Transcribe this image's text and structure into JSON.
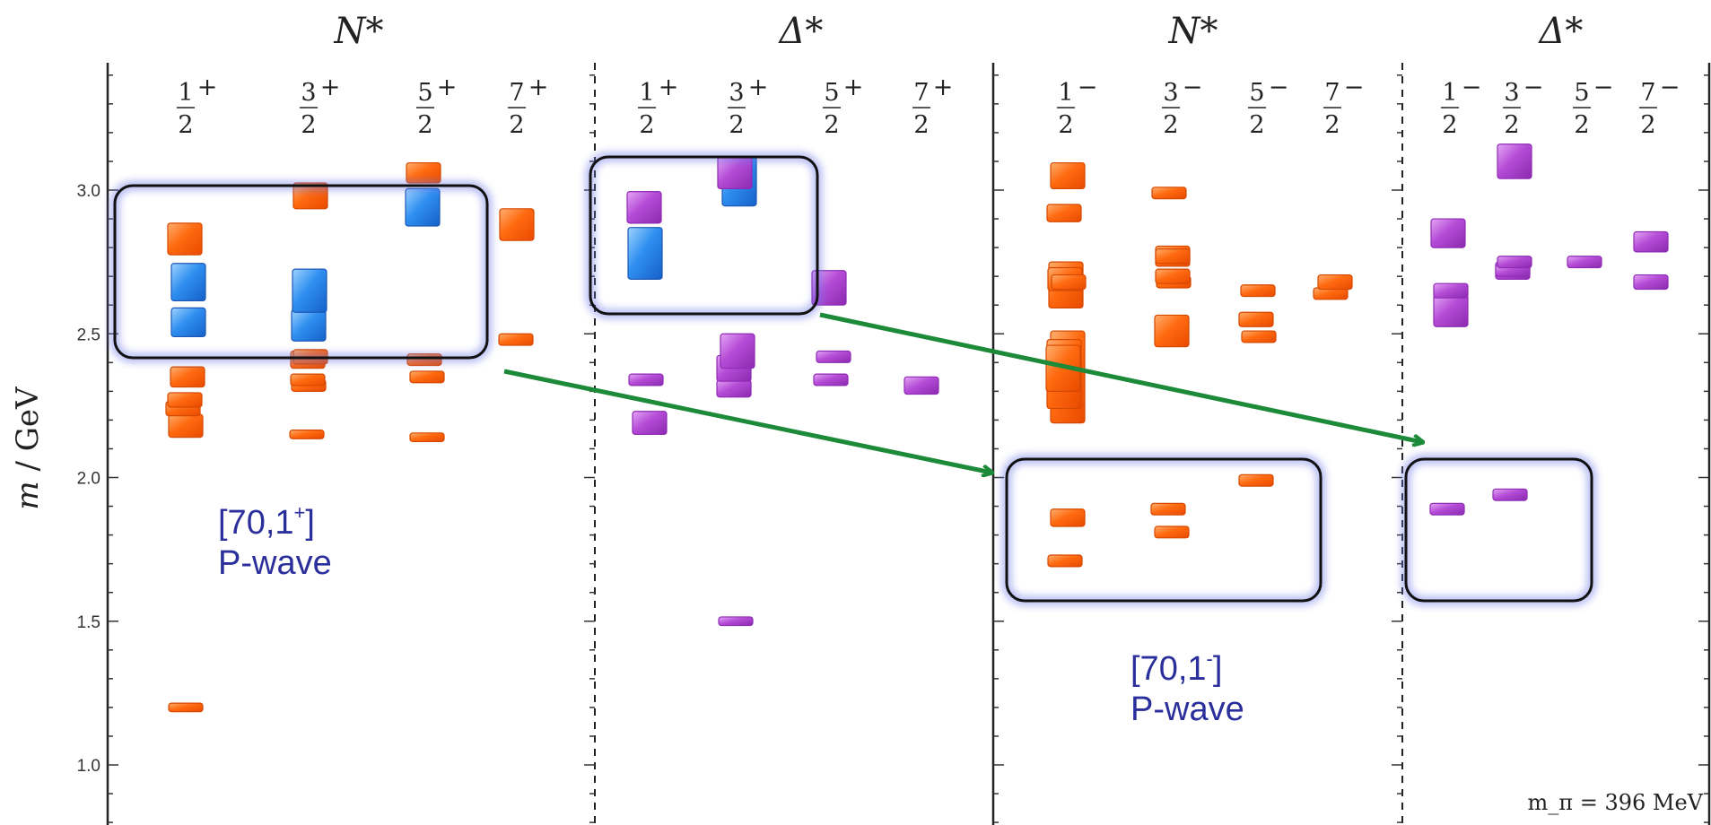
{
  "chart_data": {
    "type": "scatter",
    "ylabel": "m / GeV",
    "ylim": [
      0.73,
      3.53
    ],
    "yticks": [
      "1.0",
      "1.5",
      "2.0",
      "2.5",
      "3.0"
    ],
    "note": "m_π = 396 MeV",
    "colors": {
      "N": "#ff6a10",
      "Delta": "#b44bd6",
      "highlight": "#2f8ff0",
      "arrow": "#1d8a3a",
      "box": "#111111",
      "ann": "#2b2f9c"
    },
    "panels": [
      {
        "title": "N*",
        "parity": "+",
        "columns": [
          "1/2",
          "3/2",
          "5/2",
          "7/2"
        ],
        "color": "N",
        "states": [
          {
            "col": 0,
            "m": 1.2,
            "err": 0.015
          },
          {
            "col": 0,
            "m": 2.18,
            "err": 0.04
          },
          {
            "col": 0,
            "m": 2.24,
            "err": 0.025
          },
          {
            "col": 0,
            "m": 2.27,
            "err": 0.025
          },
          {
            "col": 0,
            "m": 2.35,
            "err": 0.035
          },
          {
            "col": 0,
            "m": 2.54,
            "err": 0.05,
            "hl": true
          },
          {
            "col": 0,
            "m": 2.68,
            "err": 0.065,
            "hl": true
          },
          {
            "col": 0,
            "m": 2.83,
            "err": 0.055
          },
          {
            "col": 1,
            "m": 2.15,
            "err": 0.015
          },
          {
            "col": 1,
            "m": 2.32,
            "err": 0.02
          },
          {
            "col": 1,
            "m": 2.34,
            "err": 0.02
          },
          {
            "col": 1,
            "m": 2.41,
            "err": 0.03
          },
          {
            "col": 1,
            "m": 2.42,
            "err": 0.025
          },
          {
            "col": 1,
            "m": 2.53,
            "err": 0.055,
            "hl": true
          },
          {
            "col": 1,
            "m": 2.65,
            "err": 0.075,
            "hl": true
          },
          {
            "col": 1,
            "m": 2.98,
            "err": 0.045
          },
          {
            "col": 2,
            "m": 2.14,
            "err": 0.015
          },
          {
            "col": 2,
            "m": 2.35,
            "err": 0.02
          },
          {
            "col": 2,
            "m": 2.41,
            "err": 0.02
          },
          {
            "col": 2,
            "m": 2.94,
            "err": 0.065,
            "hl": true
          },
          {
            "col": 2,
            "m": 3.06,
            "err": 0.035
          },
          {
            "col": 3,
            "m": 2.48,
            "err": 0.02
          },
          {
            "col": 3,
            "m": 2.88,
            "err": 0.055
          }
        ]
      },
      {
        "title": "Δ*",
        "parity": "+",
        "columns": [
          "1/2",
          "3/2",
          "5/2",
          "7/2"
        ],
        "color": "Delta",
        "states": [
          {
            "col": 0,
            "m": 2.19,
            "err": 0.04
          },
          {
            "col": 0,
            "m": 2.34,
            "err": 0.02
          },
          {
            "col": 0,
            "m": 2.78,
            "err": 0.09,
            "hl": true
          },
          {
            "col": 0,
            "m": 2.94,
            "err": 0.055
          },
          {
            "col": 1,
            "m": 1.5,
            "err": 0.015
          },
          {
            "col": 1,
            "m": 2.31,
            "err": 0.03
          },
          {
            "col": 1,
            "m": 2.38,
            "err": 0.045
          },
          {
            "col": 1,
            "m": 2.44,
            "err": 0.06
          },
          {
            "col": 1,
            "m": 3.03,
            "err": 0.085,
            "hl": true
          },
          {
            "col": 1,
            "m": 3.06,
            "err": 0.055
          },
          {
            "col": 2,
            "m": 2.34,
            "err": 0.02
          },
          {
            "col": 2,
            "m": 2.42,
            "err": 0.02
          },
          {
            "col": 2,
            "m": 2.66,
            "err": 0.06
          },
          {
            "col": 3,
            "m": 2.32,
            "err": 0.03
          }
        ]
      },
      {
        "title": "N*",
        "parity": "−",
        "columns": [
          "1/2",
          "3/2",
          "5/2",
          "7/2"
        ],
        "color": "N",
        "states": [
          {
            "col": 0,
            "m": 1.71,
            "err": 0.02
          },
          {
            "col": 0,
            "m": 1.86,
            "err": 0.03
          },
          {
            "col": 0,
            "m": 2.35,
            "err": 0.16
          },
          {
            "col": 0,
            "m": 2.36,
            "err": 0.12
          },
          {
            "col": 0,
            "m": 2.38,
            "err": 0.08
          },
          {
            "col": 0,
            "m": 2.67,
            "err": 0.08
          },
          {
            "col": 0,
            "m": 2.69,
            "err": 0.04
          },
          {
            "col": 0,
            "m": 2.68,
            "err": 0.025
          },
          {
            "col": 0,
            "m": 2.92,
            "err": 0.03
          },
          {
            "col": 0,
            "m": 3.05,
            "err": 0.045
          },
          {
            "col": 1,
            "m": 1.81,
            "err": 0.02
          },
          {
            "col": 1,
            "m": 1.89,
            "err": 0.02
          },
          {
            "col": 1,
            "m": 2.51,
            "err": 0.055
          },
          {
            "col": 1,
            "m": 2.68,
            "err": 0.02
          },
          {
            "col": 1,
            "m": 2.7,
            "err": 0.025
          },
          {
            "col": 1,
            "m": 2.77,
            "err": 0.035
          },
          {
            "col": 1,
            "m": 2.77,
            "err": 0.025
          },
          {
            "col": 1,
            "m": 2.99,
            "err": 0.02
          },
          {
            "col": 2,
            "m": 1.99,
            "err": 0.02
          },
          {
            "col": 2,
            "m": 2.49,
            "err": 0.02
          },
          {
            "col": 2,
            "m": 2.55,
            "err": 0.025
          },
          {
            "col": 2,
            "m": 2.65,
            "err": 0.02
          },
          {
            "col": 3,
            "m": 2.64,
            "err": 0.02
          },
          {
            "col": 3,
            "m": 2.68,
            "err": 0.025
          }
        ]
      },
      {
        "title": "Δ*",
        "parity": "−",
        "columns": [
          "1/2",
          "3/2",
          "5/2",
          "7/2"
        ],
        "color": "Delta",
        "states": [
          {
            "col": 0,
            "m": 1.89,
            "err": 0.02
          },
          {
            "col": 0,
            "m": 2.58,
            "err": 0.055
          },
          {
            "col": 0,
            "m": 2.65,
            "err": 0.025
          },
          {
            "col": 0,
            "m": 2.85,
            "err": 0.05
          },
          {
            "col": 1,
            "m": 1.94,
            "err": 0.02
          },
          {
            "col": 1,
            "m": 2.72,
            "err": 0.03
          },
          {
            "col": 1,
            "m": 2.72,
            "err": 0.02
          },
          {
            "col": 1,
            "m": 2.75,
            "err": 0.02
          },
          {
            "col": 1,
            "m": 3.1,
            "err": 0.06
          },
          {
            "col": 2,
            "m": 2.75,
            "err": 0.02
          },
          {
            "col": 3,
            "m": 2.68,
            "err": 0.025
          },
          {
            "col": 3,
            "m": 2.82,
            "err": 0.035
          }
        ]
      }
    ],
    "annotations": [
      {
        "id": "ann-p-plus",
        "line1": "[70,1",
        "sup": "+",
        "line1end": "]",
        "line2": "P-wave"
      },
      {
        "id": "ann-p-minus",
        "line1": "[70,1",
        "sup": "-",
        "line1end": "]",
        "line2": "P-wave"
      }
    ]
  }
}
